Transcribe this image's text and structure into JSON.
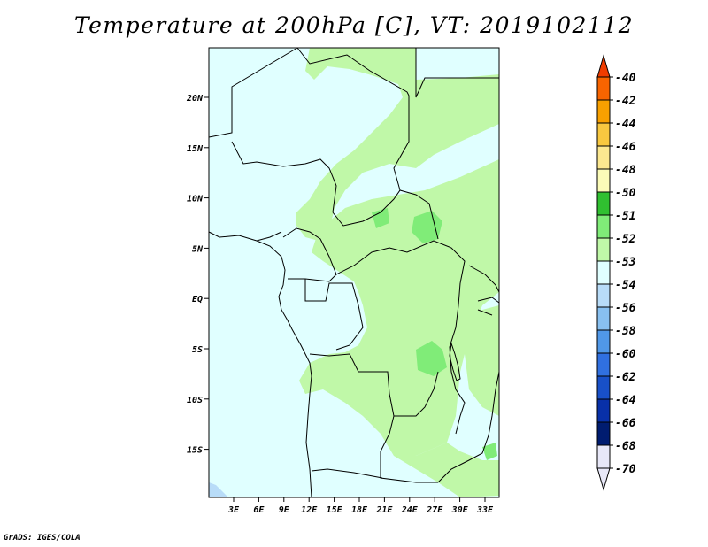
{
  "title": "Temperature at 200hPa [C], VT: 2019102112",
  "credit": "GrADS: IGES/COLA",
  "map": {
    "lon_ticks": [
      "3E",
      "6E",
      "9E",
      "12E",
      "15E",
      "18E",
      "21E",
      "24E",
      "27E",
      "30E",
      "33E"
    ],
    "lat_ticks": [
      "20N",
      "15N",
      "10N",
      "5N",
      "EQ",
      "5S",
      "10S",
      "15S"
    ],
    "field_colors": {
      "background": "#e0ffff",
      "band_53_54": "#c0f8a8",
      "band_52_53": "#80ec78",
      "band_56_54": "#b8dcf8"
    }
  },
  "legend": {
    "labels": [
      "-40",
      "-42",
      "-44",
      "-46",
      "-48",
      "-50",
      "-51",
      "-52",
      "-53",
      "-54",
      "-56",
      "-58",
      "-60",
      "-62",
      "-64",
      "-66",
      "-68",
      "-70"
    ],
    "colors": [
      "#f03c00",
      "#f86400",
      "#f8a000",
      "#f8c840",
      "#fce890",
      "#fcfcb8",
      "#30c030",
      "#80ec78",
      "#c0f8a8",
      "#e0ffff",
      "#b8dcf8",
      "#88c0f0",
      "#5098e8",
      "#3070e0",
      "#1850c8",
      "#0830a8",
      "#001c70",
      "#e8e8f8"
    ]
  }
}
